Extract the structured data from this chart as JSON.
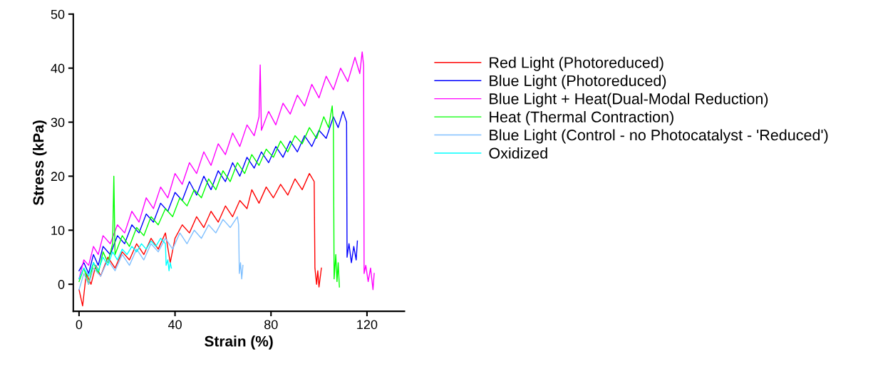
{
  "chart_data": {
    "type": "line",
    "xlabel": "Strain (%)",
    "ylabel": "Stress (kPa)",
    "xlim": [
      -2.4,
      135.6
    ],
    "xticks": [
      0,
      40,
      80,
      120
    ],
    "ylim": [
      -5,
      50
    ],
    "yticks": [
      0,
      10,
      20,
      30,
      40,
      50
    ],
    "grid": false,
    "legend": "right",
    "marker": "none",
    "line_style": "solid",
    "series": [
      {
        "name": "Red Light (Photoreduced)",
        "color": "#ff0000",
        "x": [
          0,
          1.5,
          3,
          5,
          7,
          9,
          12,
          15,
          18,
          21,
          24,
          27,
          30,
          33,
          36,
          38,
          40,
          43,
          46,
          49,
          52,
          55,
          58,
          61,
          64,
          67,
          70,
          72,
          75,
          78,
          81,
          84,
          87,
          90,
          93,
          96,
          98,
          98.3,
          99,
          99.5,
          100,
          101
        ],
        "values": [
          -1,
          -4,
          2,
          0,
          3.5,
          1.5,
          5,
          3,
          6,
          4.5,
          7.5,
          5.5,
          8.5,
          6.5,
          9.5,
          4,
          8.5,
          11,
          9.5,
          12.5,
          10.5,
          13.5,
          11.5,
          14.5,
          12.5,
          15.5,
          14,
          17.5,
          15,
          18,
          16,
          18.5,
          16.5,
          19.5,
          17.5,
          20.5,
          19,
          3,
          0,
          2.5,
          -0.5,
          3
        ]
      },
      {
        "name": "Blue Light (Photoreduced)",
        "color": "#0000ff",
        "x": [
          0,
          2,
          4,
          6,
          8,
          10,
          13,
          16,
          19,
          22,
          25,
          28,
          31,
          34,
          37,
          40,
          43,
          46,
          49,
          52,
          55,
          58,
          61,
          64,
          67,
          70,
          73,
          76,
          79,
          82,
          85,
          88,
          91,
          94,
          97,
          100,
          103,
          106,
          108,
          110,
          111.5,
          111.7,
          112.5,
          113.5,
          114.5,
          115.5,
          116
        ],
        "values": [
          2.5,
          4,
          2,
          5.5,
          3.5,
          7,
          5.5,
          9,
          7.5,
          11,
          9.5,
          13,
          11.5,
          15,
          13.5,
          17,
          15.5,
          19,
          16.5,
          20,
          17.5,
          21,
          19,
          22.5,
          20,
          23.5,
          21.5,
          24.5,
          22.5,
          25.5,
          23.5,
          26.5,
          24.5,
          27.5,
          25.5,
          28.5,
          27,
          31,
          29,
          32,
          30,
          5,
          7.5,
          4,
          7,
          4.5,
          8
        ]
      },
      {
        "name": "Blue Light + Heat(Dual-Modal Reduction)",
        "color": "#ff00ff",
        "x": [
          0,
          2,
          4,
          6,
          8,
          10,
          13,
          16,
          19,
          22,
          25,
          28,
          31,
          34,
          37,
          40,
          43,
          46,
          49,
          52,
          55,
          58,
          61,
          64,
          67,
          70,
          73,
          75,
          75.5,
          76,
          79,
          82,
          85,
          88,
          91,
          94,
          97,
          100,
          103,
          106,
          109,
          112,
          115,
          117,
          118,
          118.6,
          118.8,
          119.5,
          120.5,
          121.5,
          122.5,
          123
        ],
        "values": [
          1,
          4.5,
          3.5,
          7,
          5.5,
          9,
          7.5,
          11,
          9.5,
          13.5,
          11.5,
          16,
          14,
          18,
          16,
          20.5,
          18.5,
          22.5,
          20.5,
          24.5,
          22,
          26,
          24,
          28,
          25.5,
          29.5,
          27.5,
          31,
          40.6,
          28.5,
          32,
          29.5,
          33.5,
          31.5,
          35,
          33,
          37,
          34.5,
          38.5,
          36,
          40,
          37.5,
          42,
          39,
          43,
          40.5,
          2,
          3.5,
          0.5,
          3,
          -1,
          2
        ]
      },
      {
        "name": "Heat (Thermal Contraction)",
        "color": "#00ff00",
        "x": [
          0,
          2,
          4,
          6,
          8,
          10,
          12,
          14,
          14.5,
          15,
          18,
          21,
          24,
          27,
          30,
          33,
          36,
          39,
          42,
          45,
          48,
          51,
          54,
          57,
          60,
          63,
          66,
          69,
          72,
          75,
          78,
          81,
          84,
          87,
          90,
          93,
          96,
          99,
          102,
          104,
          105.5,
          106,
          106.3,
          107,
          107.5,
          108,
          108.5
        ],
        "values": [
          0.5,
          3,
          0,
          4,
          2,
          6,
          4,
          7.5,
          20,
          5.5,
          9,
          7,
          10.5,
          9,
          12.5,
          11,
          14,
          12.5,
          16,
          14.5,
          17.5,
          16,
          19.5,
          17.5,
          21,
          19,
          22.5,
          20.5,
          24,
          22,
          25,
          23.5,
          26.5,
          24.5,
          27.5,
          26,
          29,
          27,
          31,
          29,
          33,
          29.5,
          1,
          5.5,
          0.5,
          4,
          -0.5
        ]
      },
      {
        "name": "Blue Light (Control - no Photocatalyst - 'Reduced')",
        "color": "#80c0ff",
        "x": [
          0,
          2,
          4,
          6,
          9,
          12,
          15,
          18,
          21,
          24,
          27,
          30,
          33,
          36,
          39,
          42,
          45,
          48,
          51,
          54,
          57,
          60,
          63,
          66,
          66.5,
          66.8,
          67.3,
          67.8,
          68.3
        ],
        "values": [
          -1,
          2,
          0,
          3,
          1.5,
          4.5,
          2.5,
          5.5,
          3.5,
          6.5,
          4.5,
          7.5,
          6,
          8.5,
          6.5,
          9.5,
          7.5,
          10,
          8.5,
          11,
          9.5,
          12,
          10.5,
          12.5,
          11,
          2,
          4,
          1,
          3.5
        ]
      },
      {
        "name": "Oxidized",
        "color": "#00ffff",
        "x": [
          0,
          2,
          4,
          6,
          8,
          10,
          12,
          14,
          16,
          18,
          20,
          22,
          24,
          26,
          28,
          30,
          32,
          34,
          36,
          36.3,
          37,
          37.5,
          38,
          38.5
        ],
        "values": [
          1,
          3,
          1.5,
          4,
          2.5,
          5,
          3.5,
          6,
          4.5,
          6.5,
          5.5,
          7,
          6,
          7.5,
          6.5,
          8,
          7,
          8.5,
          7.5,
          3.5,
          4.5,
          2.5,
          4,
          3
        ]
      }
    ]
  }
}
